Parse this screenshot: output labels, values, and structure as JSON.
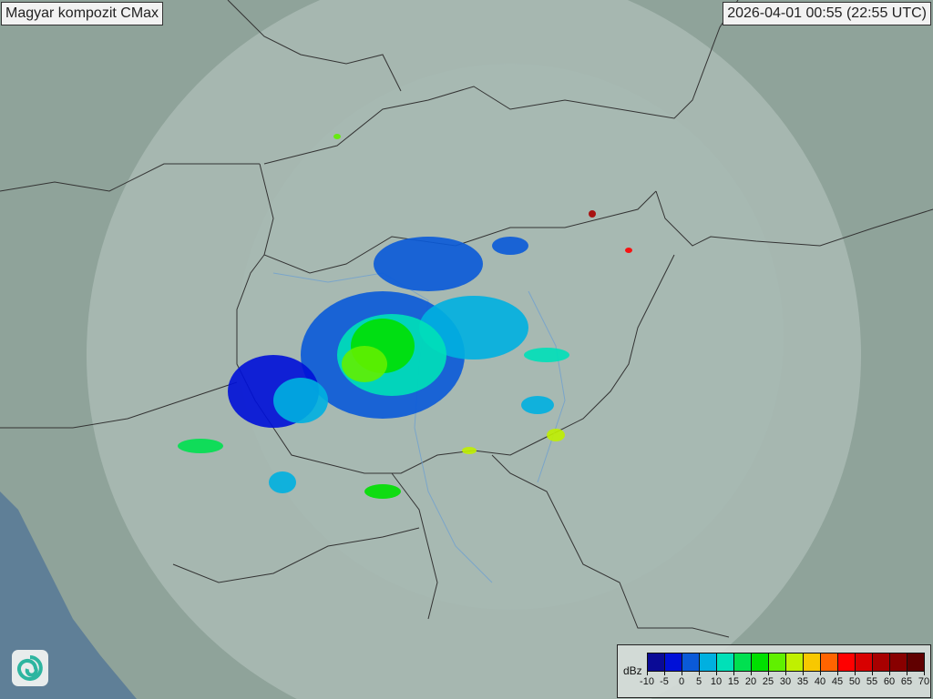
{
  "header": {
    "title": "Magyar kompozit  CMax",
    "timestamp": "2026-04-01 00:55 (22:55 UTC)"
  },
  "legend": {
    "unit": "dBz",
    "labels": [
      "-10",
      "-5",
      "0",
      "5",
      "10",
      "15",
      "20",
      "25",
      "30",
      "35",
      "40",
      "45",
      "50",
      "55",
      "60",
      "65",
      "70"
    ],
    "colors": [
      "#0a0a96",
      "#0010d8",
      "#0a5ad8",
      "#00b0e0",
      "#00e0b8",
      "#00e050",
      "#00e000",
      "#60f000",
      "#c0f000",
      "#f8c800",
      "#ff6400",
      "#ff0000",
      "#d80000",
      "#a80000",
      "#880000",
      "#600000"
    ]
  },
  "map": {
    "land_color": "#8fa39a",
    "coverage_color": "#b9c9c3",
    "sea_color": "#5f7f97",
    "border_color": "#333333",
    "river_color": "#6fa0d0"
  },
  "logo": {
    "icon": "swirl-logo-icon"
  }
}
